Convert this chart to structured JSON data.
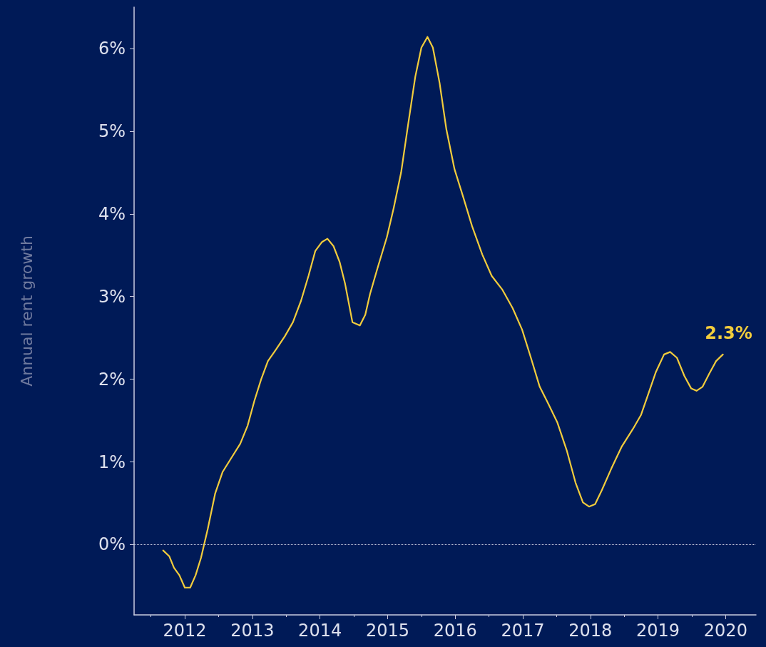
{
  "chart_data": {
    "type": "line",
    "ylabel": "Annual rent growth",
    "x": [
      2011.68,
      2011.77,
      2011.84,
      2011.92,
      2012.0,
      2012.08,
      2012.16,
      2012.24,
      2012.34,
      2012.45,
      2012.56,
      2012.69,
      2012.82,
      2012.93,
      2013.03,
      2013.13,
      2013.23,
      2013.35,
      2013.48,
      2013.6,
      2013.72,
      2013.83,
      2013.93,
      2014.03,
      2014.11,
      2014.2,
      2014.29,
      2014.37,
      2014.48,
      2014.59,
      2014.67,
      2014.74,
      2014.85,
      2014.99,
      2015.09,
      2015.2,
      2015.3,
      2015.41,
      2015.5,
      2015.59,
      2015.67,
      2015.77,
      2015.87,
      2015.99,
      2016.12,
      2016.25,
      2016.4,
      2016.54,
      2016.7,
      2016.85,
      2016.99,
      2017.12,
      2017.25,
      2017.38,
      2017.51,
      2017.65,
      2017.78,
      2017.89,
      2017.98,
      2018.07,
      2018.17,
      2018.31,
      2018.46,
      2018.63,
      2018.75,
      2018.86,
      2018.97,
      2019.09,
      2019.18,
      2019.28,
      2019.39,
      2019.49,
      2019.57,
      2019.66,
      2019.76,
      2019.86,
      2019.96
    ],
    "series": [
      {
        "color": "#f2cd3c",
        "values": [
          -0.07,
          -0.14,
          -0.28,
          -0.37,
          -0.52,
          -0.52,
          -0.37,
          -0.16,
          0.19,
          0.62,
          0.88,
          1.05,
          1.22,
          1.44,
          1.74,
          2.0,
          2.22,
          2.36,
          2.52,
          2.69,
          2.95,
          3.25,
          3.55,
          3.66,
          3.7,
          3.61,
          3.42,
          3.16,
          2.69,
          2.65,
          2.78,
          3.03,
          3.34,
          3.72,
          4.07,
          4.5,
          5.06,
          5.66,
          6.01,
          6.14,
          6.01,
          5.58,
          5.02,
          4.54,
          4.2,
          3.85,
          3.51,
          3.25,
          3.08,
          2.86,
          2.6,
          2.26,
          1.91,
          1.7,
          1.48,
          1.14,
          0.75,
          0.51,
          0.46,
          0.49,
          0.66,
          0.92,
          1.18,
          1.4,
          1.57,
          1.83,
          2.09,
          2.3,
          2.33,
          2.26,
          2.04,
          1.89,
          1.86,
          1.91,
          2.07,
          2.22,
          2.3
        ]
      }
    ],
    "xlim": [
      2011.25,
      2020.45
    ],
    "xticks": [
      2012,
      2013,
      2014,
      2015,
      2016,
      2017,
      2018,
      2019,
      2020
    ],
    "ylim": [
      -0.85,
      6.5
    ],
    "yticks": [
      {
        "value": 0,
        "label": "0%"
      },
      {
        "value": 1,
        "label": "1%"
      },
      {
        "value": 2,
        "label": "2%"
      },
      {
        "value": 3,
        "label": "3%"
      },
      {
        "value": 4,
        "label": "4%"
      },
      {
        "value": 5,
        "label": "5%"
      },
      {
        "value": 6,
        "label": "6%"
      }
    ],
    "ref_lines": [
      {
        "axis": "y",
        "value": 0,
        "label": null,
        "color": "#c8cde0",
        "line_style": "dotted"
      }
    ],
    "annotations": [
      {
        "text": "2.3%",
        "x": 2019.96,
        "y": 2.3
      }
    ],
    "grid": false,
    "marker": "none",
    "line_style": "solid"
  }
}
